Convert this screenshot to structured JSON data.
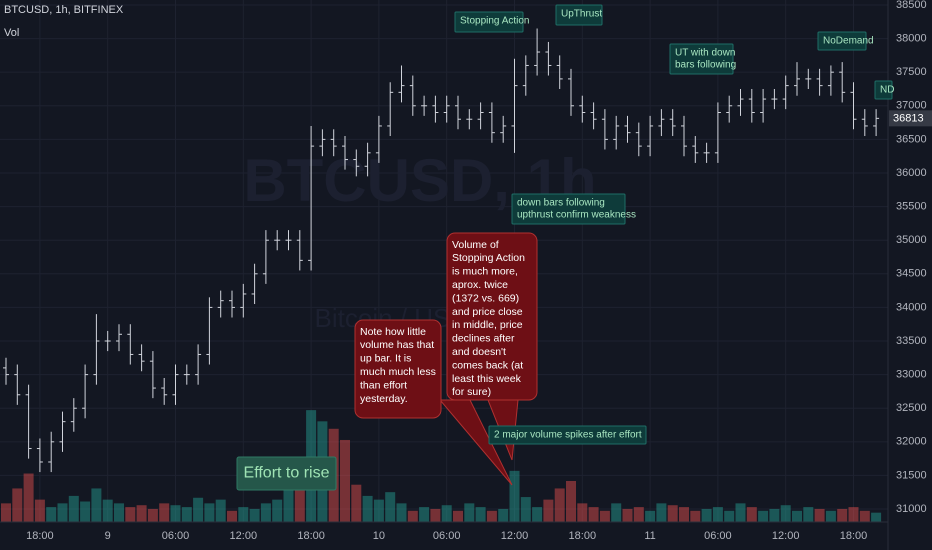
{
  "chart_data": {
    "type": "ohlc",
    "title": "BTCUSD, 1h, BITFINEX",
    "volume_label": "Vol",
    "watermark": "BTCUSD, 1h",
    "watermark_subtitle": "Bitcoin / US Dollar",
    "categories": [
      null,
      null,
      null,
      "18:00",
      null,
      null,
      null,
      null,
      null,
      "9",
      null,
      null,
      null,
      null,
      null,
      "06:00",
      null,
      null,
      null,
      null,
      null,
      "12:00",
      null,
      null,
      null,
      null,
      null,
      "18:00",
      null,
      null,
      null,
      null,
      null,
      "10",
      null,
      null,
      null,
      null,
      null,
      "06:00",
      null,
      null,
      null,
      null,
      null,
      "12:00",
      null,
      null,
      null,
      null,
      null,
      "18:00",
      null,
      null,
      null,
      null,
      null,
      "11",
      null,
      null,
      null,
      null,
      null,
      "06:00",
      null,
      null,
      null,
      null,
      null,
      "12:00",
      null,
      null,
      null,
      null,
      null,
      "18:00",
      null,
      null
    ],
    "open": [
      33100,
      33000,
      32700,
      31900,
      31700,
      32000,
      32300,
      32500,
      33000,
      33500,
      33500,
      33600,
      33300,
      33200,
      32800,
      32700,
      33000,
      33000,
      33300,
      34000,
      34100,
      34000,
      34200,
      34500,
      35000,
      35000,
      35000,
      34700,
      36400,
      36500,
      36400,
      36200,
      36100,
      36300,
      36700,
      37200,
      37300,
      37000,
      37000,
      36900,
      37000,
      36800,
      36800,
      36900,
      36600,
      36700,
      37300,
      37600,
      37800,
      37600,
      37400,
      37000,
      36900,
      36800,
      36500,
      36700,
      36600,
      36400,
      36700,
      36800,
      36700,
      36400,
      36300,
      36300,
      36900,
      37000,
      37100,
      36900,
      37100,
      37100,
      37300,
      37400,
      37400,
      37300,
      37500,
      37200,
      36800,
      36700
    ],
    "high": [
      33250,
      33150,
      32850,
      32050,
      32150,
      32450,
      32650,
      33150,
      33900,
      33650,
      33750,
      33750,
      33450,
      33350,
      32950,
      33150,
      33150,
      33450,
      34150,
      34250,
      34250,
      34350,
      34650,
      35150,
      35150,
      35150,
      35150,
      36700,
      36650,
      36650,
      36550,
      36350,
      36450,
      36850,
      37350,
      37600,
      37450,
      37150,
      37150,
      37150,
      37150,
      36950,
      37050,
      37050,
      36850,
      37700,
      37750,
      38150,
      37950,
      37750,
      37550,
      37150,
      37050,
      36950,
      36850,
      36850,
      36750,
      36850,
      36950,
      36950,
      36850,
      36550,
      36450,
      37050,
      37150,
      37250,
      37250,
      37250,
      37250,
      37450,
      37650,
      37550,
      37550,
      37600,
      37650,
      37350,
      36950,
      36950
    ],
    "low": [
      32850,
      32550,
      31750,
      31550,
      31550,
      31850,
      32150,
      32350,
      32850,
      33350,
      33350,
      33150,
      33050,
      32650,
      32550,
      32550,
      32850,
      32850,
      33150,
      33850,
      33850,
      33850,
      34050,
      34350,
      34850,
      34850,
      34550,
      34550,
      36250,
      36250,
      36050,
      35950,
      35950,
      36150,
      36550,
      37050,
      36850,
      36850,
      36750,
      36750,
      36650,
      36650,
      36650,
      36450,
      36450,
      36300,
      37150,
      37450,
      37450,
      37250,
      36850,
      36750,
      36650,
      36350,
      36350,
      36450,
      36250,
      36250,
      36550,
      36550,
      36250,
      36150,
      36150,
      36150,
      36750,
      36850,
      36750,
      36750,
      36950,
      36950,
      37150,
      37250,
      37150,
      37150,
      37050,
      36650,
      36550,
      36550
    ],
    "close": [
      33000,
      32700,
      31900,
      31700,
      32000,
      32300,
      32500,
      33000,
      33500,
      33500,
      33600,
      33300,
      33200,
      32800,
      32700,
      33000,
      33000,
      33300,
      34000,
      34100,
      34000,
      34200,
      34500,
      35000,
      35000,
      35000,
      34700,
      36400,
      36500,
      36400,
      36200,
      36100,
      36300,
      36700,
      37200,
      37300,
      37000,
      37000,
      36900,
      37000,
      36800,
      36800,
      36900,
      36600,
      36700,
      37300,
      37600,
      37800,
      37600,
      37400,
      37000,
      36900,
      36800,
      36500,
      36700,
      36600,
      36400,
      36700,
      36800,
      36700,
      36400,
      36300,
      36300,
      36900,
      37000,
      37100,
      36900,
      37100,
      37100,
      37300,
      37400,
      37400,
      37300,
      37500,
      37200,
      36800,
      36700,
      36813
    ],
    "volume": [
      500,
      900,
      1300,
      600,
      400,
      500,
      700,
      550,
      900,
      600,
      500,
      400,
      450,
      350,
      500,
      450,
      400,
      650,
      500,
      600,
      300,
      400,
      350,
      500,
      600,
      1100,
      1700,
      3000,
      2700,
      2500,
      2200,
      1000,
      700,
      600,
      800,
      500,
      300,
      400,
      350,
      450,
      300,
      500,
      400,
      300,
      350,
      1372,
      669,
      400,
      600,
      900,
      1100,
      500,
      400,
      300,
      500,
      350,
      400,
      300,
      500,
      450,
      400,
      300,
      350,
      400,
      300,
      500,
      400,
      300,
      350,
      450,
      300,
      400,
      350,
      300,
      350,
      400,
      300,
      250
    ],
    "color": "#d1d4dc",
    "up_color": "#26a69a",
    "down_color": "#ef5350",
    "ylim": [
      30807,
      38574
    ],
    "yticks": [
      31000,
      31500,
      32000,
      32500,
      33000,
      33500,
      34000,
      34500,
      35000,
      35500,
      36000,
      36500,
      37000,
      37500,
      38000,
      38500
    ],
    "y2lim": [
      0,
      14000
    ],
    "grid": true,
    "annotations": [
      {
        "lines": [
          "Stopping Action"
        ]
      },
      {
        "lines": [
          "UpThrust"
        ]
      },
      {
        "lines": [
          "UT with down",
          "bars following"
        ]
      },
      {
        "lines": [
          "NoDemand"
        ]
      },
      {
        "lines": [
          "ND"
        ]
      },
      {
        "lines": [
          "down bars following",
          "upthrust confirm weakness"
        ]
      },
      {
        "lines": [
          "2 major volume spikes after effort"
        ]
      },
      {
        "lines": [
          "Effort to rise"
        ]
      },
      {
        "lines": [
          "Note how little",
          "volume has that",
          "up bar. It is",
          "much much less",
          "than effort",
          "yesterday."
        ]
      },
      {
        "lines": [
          "Volume of",
          "Stopping Action",
          "is much more,",
          "aprox. twice",
          "(1372 vs. 669)",
          "and price close",
          "in middle, price",
          "declines after",
          "and doesn't",
          "comes back (at",
          "least this week",
          "for sure)"
        ]
      }
    ]
  }
}
